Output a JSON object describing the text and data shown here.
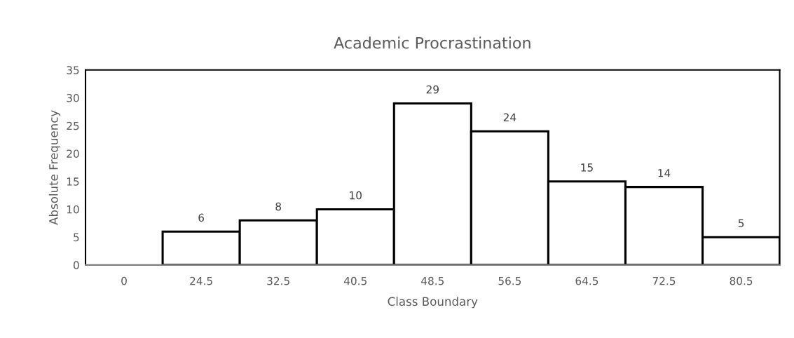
{
  "chart_data": {
    "type": "bar",
    "title": "Academic Procrastination",
    "xlabel": "Class Boundary",
    "ylabel": "Absolute Frequency",
    "categories": [
      "0",
      "24.5",
      "32.5",
      "40.5",
      "48.5",
      "56.5",
      "64.5",
      "72.5",
      "80.5"
    ],
    "values": [
      0,
      6,
      8,
      10,
      29,
      24,
      15,
      14,
      5
    ],
    "value_labels": [
      null,
      "6",
      "8",
      "10",
      "29",
      "24",
      "15",
      "14",
      "5"
    ],
    "color": "#ffffff",
    "ylim": [
      0,
      35
    ],
    "yticks": [
      0,
      5,
      10,
      15,
      20,
      25,
      30,
      35
    ],
    "grid": false
  }
}
